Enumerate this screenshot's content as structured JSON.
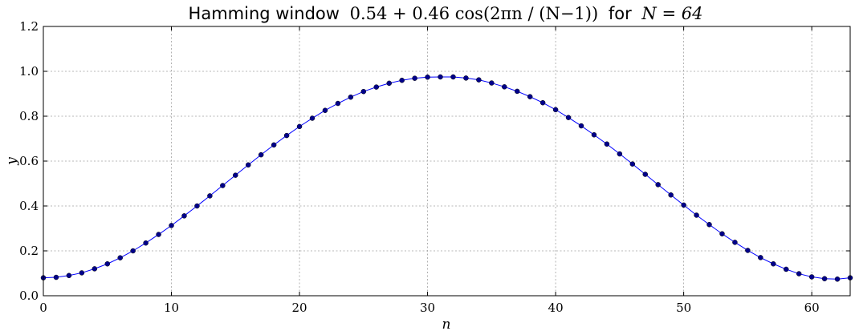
{
  "chart_data": {
    "type": "line",
    "title_prefix": "Hamming window",
    "title_formula": "0.54 + 0.46 cos(2πn / (N−1))",
    "title_mid": "for",
    "title_param": "N = 64",
    "xlabel": "n",
    "ylabel": "y",
    "xlim": [
      0,
      63
    ],
    "ylim": [
      0.0,
      1.2
    ],
    "grid": true,
    "marker": "circle",
    "color": "#0000ff",
    "marker_color": "#00008b",
    "xticks": [
      0,
      10,
      20,
      30,
      40,
      50,
      60
    ],
    "xtick_labels": [
      "0",
      "10",
      "20",
      "30",
      "40",
      "50",
      "60"
    ],
    "yticks": [
      0.0,
      0.2,
      0.4,
      0.6,
      0.8,
      1.0,
      1.2
    ],
    "ytick_labels": [
      "0.0",
      "0.2",
      "0.4",
      "0.6",
      "0.8",
      "1.0",
      "1.2"
    ],
    "series": [
      {
        "x": [
          0,
          1,
          2,
          3,
          4,
          5,
          6,
          7,
          8,
          9,
          10,
          11,
          12,
          13,
          14,
          15,
          16,
          17,
          18,
          19,
          20,
          21,
          22,
          23,
          24,
          25,
          26,
          27,
          28,
          29,
          30,
          31,
          32,
          33,
          34,
          35,
          36,
          37,
          38,
          39,
          40,
          41,
          42,
          43,
          44,
          45,
          46,
          47,
          48,
          49,
          50,
          51,
          52,
          53,
          54,
          55,
          56,
          57,
          58,
          59,
          60,
          61,
          62,
          63
        ],
        "values": [
          0.08,
          0.082,
          0.09,
          0.102,
          0.12,
          0.142,
          0.169,
          0.2,
          0.235,
          0.273,
          0.313,
          0.356,
          0.4,
          0.445,
          0.491,
          0.537,
          0.583,
          0.628,
          0.672,
          0.714,
          0.754,
          0.791,
          0.826,
          0.857,
          0.885,
          0.91,
          0.93,
          0.947,
          0.96,
          0.969,
          0.974,
          0.975,
          0.975,
          0.97,
          0.962,
          0.948,
          0.931,
          0.911,
          0.887,
          0.86,
          0.829,
          0.794,
          0.757,
          0.717,
          0.676,
          0.632,
          0.587,
          0.541,
          0.495,
          0.449,
          0.404,
          0.359,
          0.317,
          0.276,
          0.238,
          0.202,
          0.17,
          0.142,
          0.118,
          0.098,
          0.084,
          0.076,
          0.074,
          0.08
        ]
      }
    ]
  }
}
